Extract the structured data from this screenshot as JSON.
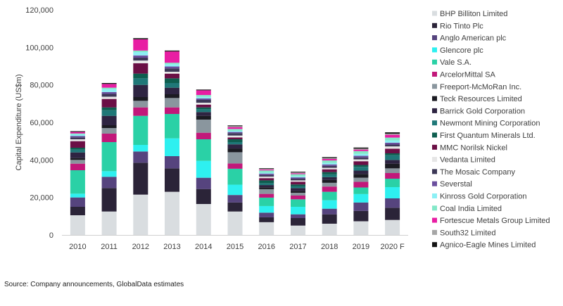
{
  "chart_data": {
    "type": "bar",
    "stacked": true,
    "ylabel": "Capital Expenditure (US$m)",
    "xlabel": "",
    "ylim": [
      0,
      120000
    ],
    "yticks": [
      0,
      20000,
      40000,
      60000,
      80000,
      100000,
      120000
    ],
    "ytick_labels": [
      "0",
      "20,000",
      "40,000",
      "60,000",
      "80,000",
      "100,000",
      "120,000"
    ],
    "grid": false,
    "legend_position": "right",
    "categories": [
      "2010",
      "2011",
      "2012",
      "2013",
      "2014",
      "2015",
      "2016",
      "2017",
      "2018",
      "2019",
      "2020 F"
    ],
    "series": [
      {
        "name": "BHP Billiton Limited",
        "color": "#d9dde0",
        "values": [
          10500,
          12500,
          21500,
          23000,
          16500,
          12500,
          6800,
          5000,
          6000,
          7300,
          8000
        ]
      },
      {
        "name": "Rio Tinto Plc",
        "color": "#2b2438",
        "values": [
          4500,
          12500,
          17000,
          12500,
          8000,
          4800,
          2600,
          4000,
          5000,
          5500,
          6500
        ]
      },
      {
        "name": "Anglo American plc",
        "color": "#56447e",
        "values": [
          5000,
          6000,
          6000,
          6500,
          6000,
          4000,
          2500,
          2000,
          3000,
          4500,
          5000
        ]
      },
      {
        "name": "Glencore plc",
        "color": "#2ef0f0",
        "values": [
          2000,
          3000,
          3500,
          9500,
          9000,
          5500,
          3500,
          4000,
          4500,
          4500,
          6000
        ]
      },
      {
        "name": "Vale S.A.",
        "color": "#2ad1a6",
        "values": [
          12500,
          15500,
          15500,
          13000,
          11500,
          8500,
          4500,
          4000,
          4500,
          3500,
          4500
        ]
      },
      {
        "name": "ArcelorMittal SA",
        "color": "#c2187a",
        "values": [
          3500,
          4500,
          4500,
          3500,
          3500,
          2800,
          2000,
          2000,
          2800,
          3000,
          3000
        ]
      },
      {
        "name": "Freeport-McMoRan Inc.",
        "color": "#8a969e",
        "values": [
          2000,
          3000,
          3500,
          5000,
          7000,
          6000,
          2500,
          1500,
          2000,
          2200,
          2500
        ]
      },
      {
        "name": "Teck Resources Limited",
        "color": "#1b1b22",
        "values": [
          1000,
          1500,
          2000,
          2000,
          2000,
          2000,
          1000,
          1000,
          1500,
          2000,
          2500
        ]
      },
      {
        "name": "Barrick Gold Corporation",
        "color": "#2e2442",
        "values": [
          3000,
          5000,
          6500,
          3500,
          2000,
          2200,
          1200,
          1500,
          1500,
          1800,
          2000
        ]
      },
      {
        "name": "Newmont Mining Corporation",
        "color": "#1f7878",
        "values": [
          1500,
          3000,
          3500,
          2500,
          1500,
          1200,
          1000,
          900,
          1500,
          2000,
          2500
        ]
      },
      {
        "name": "First Quantum Minerals Ltd.",
        "color": "#0e5e4f",
        "values": [
          1000,
          1500,
          2500,
          2500,
          1000,
          1500,
          1500,
          1000,
          1200,
          1000,
          1000
        ]
      },
      {
        "name": "MMC Norilsk Nickel",
        "color": "#6b0f45",
        "values": [
          3500,
          4500,
          5500,
          2500,
          1500,
          1000,
          1200,
          1500,
          1500,
          2000,
          2500
        ]
      },
      {
        "name": "Vedanta Limited",
        "color": "#e6e6e6",
        "values": [
          1000,
          1200,
          1500,
          1000,
          1000,
          1000,
          800,
          700,
          800,
          1000,
          1200
        ]
      },
      {
        "name": "The Mosaic Company",
        "color": "#3d3857",
        "values": [
          1000,
          1500,
          1500,
          1800,
          1500,
          1300,
          900,
          900,
          1000,
          1000,
          1000
        ]
      },
      {
        "name": "Severstal",
        "color": "#6b4f9e",
        "values": [
          800,
          1000,
          1200,
          1000,
          800,
          600,
          700,
          700,
          800,
          900,
          1000
        ]
      },
      {
        "name": "Kinross Gold Corporation",
        "color": "#8cf0f5",
        "values": [
          800,
          1500,
          1800,
          1200,
          800,
          600,
          500,
          500,
          800,
          1000,
          1200
        ]
      },
      {
        "name": "Coal India Limited",
        "color": "#83e8c8",
        "values": [
          500,
          800,
          800,
          800,
          1000,
          1000,
          1200,
          1200,
          1300,
          1500,
          1500
        ]
      },
      {
        "name": "Fortescue Metals Group Limited",
        "color": "#e81ea3",
        "values": [
          800,
          2000,
          6000,
          6000,
          2500,
          1000,
          500,
          500,
          800,
          800,
          1500
        ]
      },
      {
        "name": "South32 Limited",
        "color": "#a6a6a6",
        "values": [
          0,
          0,
          0,
          0,
          0,
          500,
          400,
          400,
          500,
          500,
          600
        ]
      },
      {
        "name": "Agnico-Eagle Mines Limited",
        "color": "#131313",
        "values": [
          400,
          500,
          600,
          500,
          400,
          400,
          300,
          400,
          500,
          600,
          700
        ]
      }
    ]
  },
  "source_text": "Source: Company announcements, GlobalData estimates"
}
